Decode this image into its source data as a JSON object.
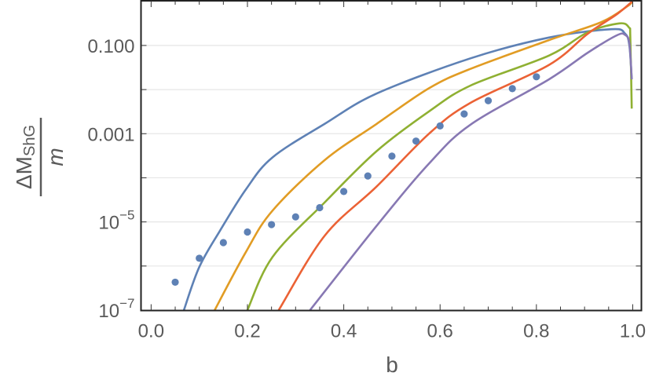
{
  "chart_data": {
    "type": "line",
    "title": "",
    "xlabel": "b",
    "ylabel": {
      "main": "ΔM",
      "subscript": "ShG",
      "denominator": "m"
    },
    "xlim": [
      -0.021,
      1.018
    ],
    "ylim": [
      9.8e-08,
      1.03
    ],
    "yscale": "log",
    "grid": "horizontal gridlines at each decade",
    "x_ticks": [
      {
        "value": 0.0,
        "label": "0.0"
      },
      {
        "value": 0.2,
        "label": "0.2"
      },
      {
        "value": 0.4,
        "label": "0.4"
      },
      {
        "value": 0.6,
        "label": "0.6"
      },
      {
        "value": 0.8,
        "label": "0.8"
      },
      {
        "value": 1.0,
        "label": "1.0"
      }
    ],
    "y_ticks": [
      {
        "value": 0.1,
        "label": "0.100",
        "base": "",
        "exp": ""
      },
      {
        "value": 0.001,
        "label": "0.001",
        "base": "",
        "exp": ""
      },
      {
        "value": 1e-05,
        "label": "",
        "base": "10",
        "exp": "−5"
      },
      {
        "value": 1e-07,
        "label": "",
        "base": "10",
        "exp": "−7"
      }
    ],
    "series": [
      {
        "color": "#5E81B5",
        "style": "line",
        "x": [
          0.068,
          0.1,
          0.143,
          0.197,
          0.252,
          0.36,
          0.468,
          0.663,
          0.826,
          0.956,
          0.984,
          0.993,
          0.998
        ],
        "y": [
          1e-07,
          9.5e-07,
          6.3e-06,
          5.5e-05,
          0.00029,
          0.00166,
          0.0081,
          0.051,
          0.151,
          0.234,
          0.186,
          0.1,
          0.017
        ]
      },
      {
        "color": "#E19C24",
        "style": "line",
        "x": [
          0.132,
          0.197,
          0.252,
          0.36,
          0.468,
          0.577,
          0.663,
          0.826,
          0.935,
          0.989,
          0.999
        ],
        "y": [
          1e-07,
          2.1e-06,
          1.8e-05,
          0.00025,
          0.00166,
          0.0107,
          0.0295,
          0.132,
          0.339,
          0.776,
          1.0
        ]
      },
      {
        "color": "#8FB032",
        "style": "line",
        "x": [
          0.2,
          0.252,
          0.36,
          0.468,
          0.577,
          0.663,
          0.826,
          0.907,
          0.972,
          0.992,
          0.995,
          0.998
        ],
        "y": [
          1e-07,
          1.6e-06,
          2.75e-05,
          0.0004,
          0.0032,
          0.0123,
          0.059,
          0.2,
          0.316,
          0.257,
          0.148,
          0.0037
        ]
      },
      {
        "color": "#EB6235",
        "style": "line",
        "x": [
          0.265,
          0.36,
          0.468,
          0.577,
          0.663,
          0.826,
          0.907,
          0.967,
          0.999
        ],
        "y": [
          1e-07,
          4.8e-06,
          6.3e-05,
          0.001,
          0.005,
          0.036,
          0.186,
          0.51,
          1.0
        ]
      },
      {
        "color": "#8778B3",
        "style": "line",
        "x": [
          0.33,
          0.468,
          0.577,
          0.663,
          0.826,
          0.907,
          0.967,
          0.984,
          0.993,
          0.998
        ],
        "y": [
          1e-07,
          8.1e-06,
          0.00021,
          0.0016,
          0.017,
          0.069,
          0.17,
          0.174,
          0.112,
          0.017
        ]
      },
      {
        "color": "#5E81B5",
        "style": "points",
        "x": [
          0.05,
          0.1,
          0.15,
          0.2,
          0.25,
          0.3,
          0.35,
          0.4,
          0.45,
          0.5,
          0.55,
          0.6,
          0.65,
          0.7,
          0.75,
          0.8
        ],
        "y": [
          4.3e-07,
          1.5e-06,
          3.4e-06,
          5.9e-06,
          8.7e-06,
          1.3e-05,
          2.1e-05,
          4.9e-05,
          0.00011,
          0.00031,
          0.00068,
          0.0015,
          0.0028,
          0.0056,
          0.0105,
          0.0195
        ]
      }
    ]
  }
}
